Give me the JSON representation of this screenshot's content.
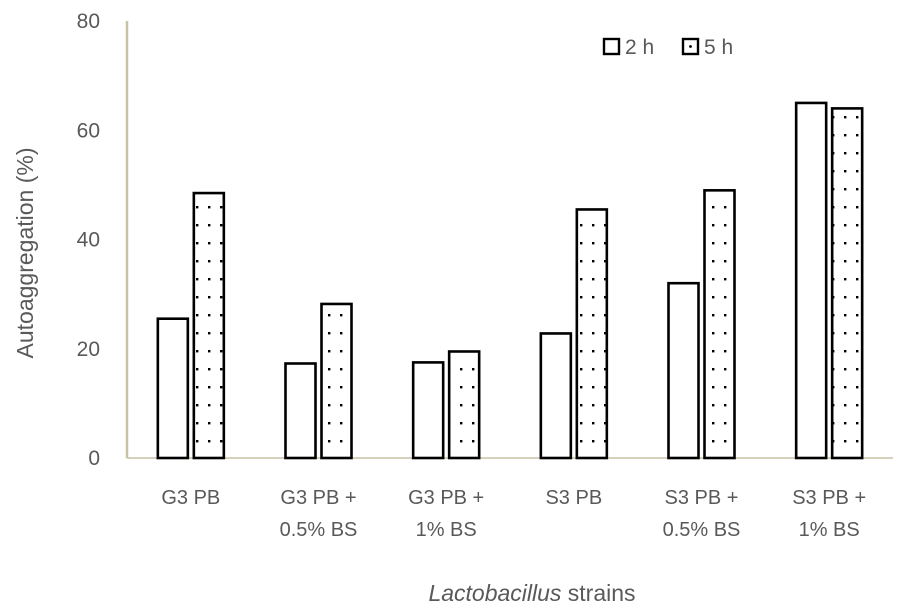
{
  "chart_data": {
    "type": "bar",
    "categories": [
      [
        "G3 PB"
      ],
      [
        "G3 PB +",
        "0.5% BS"
      ],
      [
        "G3 PB +",
        "1% BS"
      ],
      [
        "S3 PB"
      ],
      [
        "S3 PB +",
        "0.5% BS"
      ],
      [
        "S3 PB +",
        "1% BS"
      ]
    ],
    "series": [
      {
        "name": "2 h",
        "pattern": "hollow",
        "values": [
          25.5,
          17.3,
          17.5,
          22.8,
          32.0,
          65.0
        ]
      },
      {
        "name": "5 h",
        "pattern": "dotted",
        "values": [
          48.5,
          28.2,
          19.5,
          45.5,
          49.0,
          64.0
        ]
      }
    ],
    "xlabel_italic": "Lactobacillus",
    "xlabel_rest": " strains",
    "ylabel": "Autoaggregation (%)",
    "ylim": [
      0,
      80
    ],
    "yticks": [
      "0",
      "20",
      "40",
      "60",
      "80"
    ],
    "grid": false,
    "legend_position": "top-right",
    "colors": {
      "axis_line": "#c9c2a6",
      "text": "#595959",
      "bar_stroke": "#000000",
      "bar_fill": "#ffffff"
    }
  }
}
